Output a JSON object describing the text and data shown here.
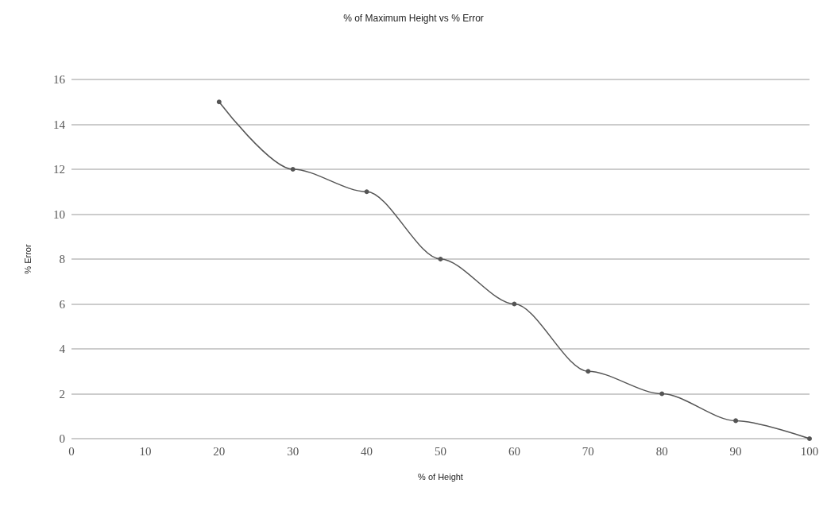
{
  "chart_data": {
    "type": "line",
    "title": "% of Maximum Height vs % Error",
    "xlabel": "% of Height",
    "ylabel": "% Error",
    "x": [
      20,
      30,
      40,
      50,
      60,
      70,
      80,
      90,
      100
    ],
    "series": [
      {
        "color": "#555555",
        "values": [
          15,
          12,
          11,
          8,
          6,
          3,
          2,
          0.8,
          0
        ]
      }
    ],
    "xlim": [
      0,
      100
    ],
    "xticks": [
      0,
      10,
      20,
      30,
      40,
      50,
      60,
      70,
      80,
      90,
      100
    ],
    "ylim": [
      0,
      16
    ],
    "yticks": [
      0,
      2,
      4,
      6,
      8,
      10,
      12,
      14,
      16
    ],
    "grid": "y",
    "marker": "circle",
    "line_style": "solid"
  }
}
